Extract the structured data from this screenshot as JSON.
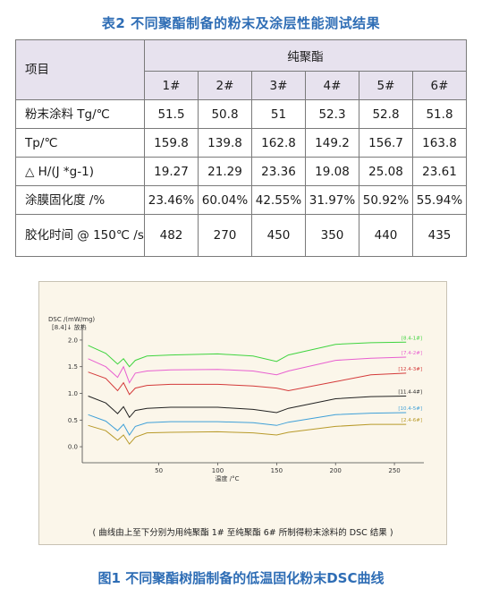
{
  "table": {
    "title": "表2 不同聚酯制备的粉末及涂层性能测试结果",
    "item_header": "项目",
    "group_header": "纯聚酯",
    "columns": [
      "1#",
      "2#",
      "3#",
      "4#",
      "5#",
      "6#"
    ],
    "rows": [
      {
        "label": "粉末涂料 Tg/℃",
        "values": [
          "51.5",
          "50.8",
          "51",
          "52.3",
          "52.8",
          "51.8"
        ]
      },
      {
        "label": "Tp/℃",
        "values": [
          "159.8",
          "139.8",
          "162.8",
          "149.2",
          "156.7",
          "163.8"
        ]
      },
      {
        "label": "△ H/(J *g-1)",
        "values": [
          "19.27",
          "21.29",
          "23.36",
          "19.08",
          "25.08",
          "23.61"
        ]
      },
      {
        "label": "涂膜固化度 /%",
        "values": [
          "23.46%",
          "60.04%",
          "42.55%",
          "31.97%",
          "50.92%",
          "55.94%"
        ]
      },
      {
        "label": "胶化时间 @ 150℃ /s",
        "values": [
          "482",
          "270",
          "450",
          "350",
          "440",
          "435"
        ]
      }
    ]
  },
  "figure": {
    "y_title": "DSC /(mW/mg)",
    "exo_label": "[8.4]↓ 放热",
    "x_label": "温度 /°C",
    "caption_inner": "( 曲线由上至下分别为用纯聚酯 1# 至纯聚酯 6# 所制得粉末涂料的 DSC 结果 )",
    "caption": "图1 不同聚酯树脂制备的低温固化粉末DSC曲线"
  },
  "chart_data": {
    "type": "line",
    "title": "",
    "xlabel": "温度 /°C",
    "ylabel": "DSC /(mW/mg)",
    "xlim": [
      -15,
      275
    ],
    "ylim": [
      -0.2,
      2.15
    ],
    "x_ticks": [
      50,
      100,
      150,
      200,
      250
    ],
    "y_ticks": [
      0.0,
      0.5,
      1.0,
      1.5,
      2.0
    ],
    "grid": false,
    "series": [
      {
        "name": "[8.4-1#]",
        "color": "#3fd43f",
        "x": [
          -10,
          5,
          15,
          20,
          25,
          30,
          40,
          60,
          100,
          130,
          150,
          160,
          200,
          230,
          260
        ],
        "y": [
          1.9,
          1.75,
          1.55,
          1.65,
          1.5,
          1.62,
          1.7,
          1.72,
          1.74,
          1.7,
          1.6,
          1.72,
          1.92,
          1.95,
          1.96
        ]
      },
      {
        "name": "[7.4-2#]",
        "color": "#e85fd0",
        "x": [
          -10,
          5,
          15,
          20,
          25,
          30,
          40,
          60,
          100,
          130,
          150,
          160,
          200,
          230,
          260
        ],
        "y": [
          1.65,
          1.5,
          1.3,
          1.5,
          1.2,
          1.38,
          1.42,
          1.44,
          1.45,
          1.42,
          1.35,
          1.42,
          1.62,
          1.66,
          1.68
        ]
      },
      {
        "name": "[12.4-3#]",
        "color": "#d43a3a",
        "x": [
          -10,
          5,
          15,
          20,
          25,
          30,
          40,
          60,
          100,
          130,
          150,
          160,
          200,
          230,
          260
        ],
        "y": [
          1.4,
          1.28,
          1.05,
          1.2,
          0.98,
          1.1,
          1.15,
          1.17,
          1.17,
          1.14,
          1.1,
          1.05,
          1.22,
          1.35,
          1.38
        ]
      },
      {
        "name": "[11.4-4#]",
        "color": "#222222",
        "x": [
          -10,
          5,
          15,
          20,
          25,
          30,
          40,
          60,
          100,
          130,
          150,
          160,
          200,
          230,
          260
        ],
        "y": [
          0.95,
          0.82,
          0.62,
          0.75,
          0.55,
          0.68,
          0.72,
          0.74,
          0.74,
          0.7,
          0.64,
          0.72,
          0.9,
          0.94,
          0.95
        ]
      },
      {
        "name": "[10.4-5#]",
        "color": "#3fa0d8",
        "x": [
          -10,
          5,
          15,
          20,
          25,
          30,
          40,
          60,
          100,
          130,
          150,
          160,
          200,
          230,
          260
        ],
        "y": [
          0.6,
          0.48,
          0.3,
          0.42,
          0.22,
          0.38,
          0.45,
          0.47,
          0.47,
          0.45,
          0.4,
          0.46,
          0.6,
          0.63,
          0.64
        ]
      },
      {
        "name": "[2.4-6#]",
        "color": "#b89a2a",
        "x": [
          -10,
          5,
          15,
          20,
          25,
          30,
          40,
          60,
          100,
          130,
          150,
          160,
          200,
          230,
          260
        ],
        "y": [
          0.4,
          0.3,
          0.12,
          0.22,
          0.05,
          0.18,
          0.26,
          0.27,
          0.28,
          0.26,
          0.22,
          0.27,
          0.38,
          0.42,
          0.42
        ]
      }
    ]
  }
}
